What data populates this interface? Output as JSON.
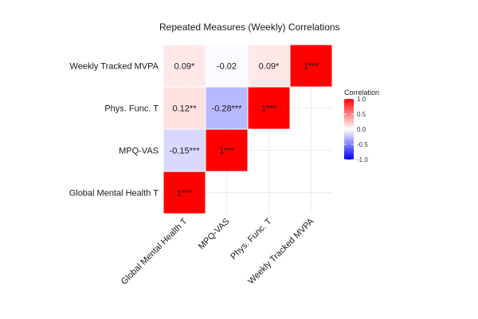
{
  "chart_data": {
    "type": "heatmap",
    "title": "Repeated Measures (Weekly) Correlations",
    "xlabel": "",
    "ylabel": "",
    "variables": [
      "Global Mental Health T",
      "MPQ-VAS",
      "Phys. Func. T",
      "Weekly Tracked MVPA"
    ],
    "cells": [
      {
        "x": "Global Mental Health T",
        "y": "Global Mental Health T",
        "r": 1.0,
        "label": "1***"
      },
      {
        "x": "Global Mental Health T",
        "y": "MPQ-VAS",
        "r": -0.15,
        "label": "-0.15***"
      },
      {
        "x": "MPQ-VAS",
        "y": "MPQ-VAS",
        "r": 1.0,
        "label": "1***"
      },
      {
        "x": "Global Mental Health T",
        "y": "Phys. Func. T",
        "r": 0.12,
        "label": "0.12**"
      },
      {
        "x": "MPQ-VAS",
        "y": "Phys. Func. T",
        "r": -0.28,
        "label": "-0.28***"
      },
      {
        "x": "Phys. Func. T",
        "y": "Phys. Func. T",
        "r": 1.0,
        "label": "1***"
      },
      {
        "x": "Global Mental Health T",
        "y": "Weekly Tracked MVPA",
        "r": 0.09,
        "label": "0.09*"
      },
      {
        "x": "MPQ-VAS",
        "y": "Weekly Tracked MVPA",
        "r": -0.02,
        "label": "-0.02"
      },
      {
        "x": "Phys. Func. T",
        "y": "Weekly Tracked MVPA",
        "r": 0.09,
        "label": "0.09*"
      },
      {
        "x": "Weekly Tracked MVPA",
        "y": "Weekly Tracked MVPA",
        "r": 1.0,
        "label": "1***"
      }
    ],
    "legend": {
      "title": "Correlation",
      "range": [
        -1.0,
        1.0
      ],
      "ticks": [
        "1.0",
        "0.5",
        "0.0",
        "-0.5",
        "-1.0"
      ],
      "placement": "right"
    },
    "colors": {
      "low": "#0000ff",
      "mid": "#ffffff",
      "high": "#ff0000"
    },
    "grid": true
  }
}
